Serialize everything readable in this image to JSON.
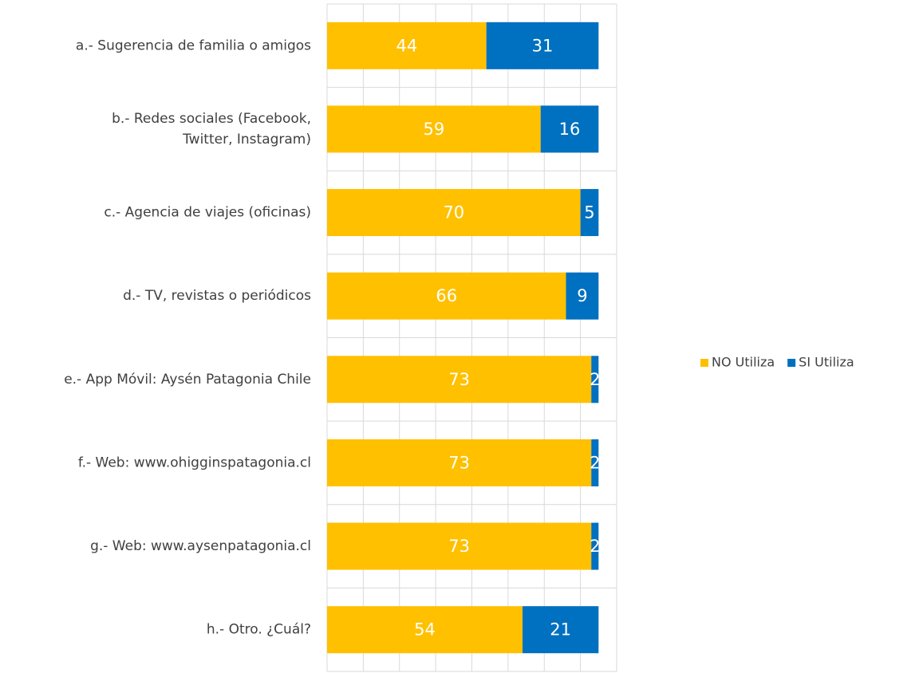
{
  "chart_data": {
    "type": "stacked_barh",
    "categories": [
      "a.- Sugerencia de familia o amigos",
      "b.- Redes sociales (Facebook, Twitter, Instagram)",
      "c.- Agencia de viajes (oficinas)",
      "d.- TV, revistas o periódicos",
      "e.- App Móvil: Aysén Patagonia Chile",
      "f.- Web: www.ohigginspatagonia.cl",
      "g.- Web: www.aysenpatagonia.cl",
      "h.- Otro. ¿Cuál?"
    ],
    "series": [
      {
        "name": "NO Utiliza",
        "color": "#FFC000",
        "values": [
          44,
          59,
          70,
          66,
          73,
          73,
          73,
          54
        ]
      },
      {
        "name": "SI Utiliza",
        "color": "#0070C0",
        "values": [
          31,
          16,
          5,
          9,
          2,
          2,
          2,
          21
        ]
      }
    ],
    "xlim": [
      0,
      80
    ],
    "xticks": [
      0,
      10,
      20,
      30,
      40,
      50,
      60,
      70,
      80
    ],
    "grid": true,
    "legend": "right"
  }
}
